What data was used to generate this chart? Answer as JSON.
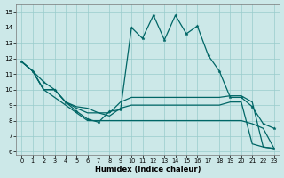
{
  "bg_color": "#cce8e8",
  "grid_color": "#99cccc",
  "line_color": "#006666",
  "xlabel": "Humidex (Indice chaleur)",
  "xlim": [
    -0.5,
    23.5
  ],
  "ylim": [
    5.8,
    15.5
  ],
  "yticks": [
    6,
    7,
    8,
    9,
    10,
    11,
    12,
    13,
    14,
    15
  ],
  "xticks": [
    0,
    1,
    2,
    3,
    4,
    5,
    6,
    7,
    8,
    9,
    10,
    11,
    12,
    13,
    14,
    15,
    16,
    17,
    18,
    19,
    20,
    21,
    22,
    23
  ],
  "line_peak": [
    11.8,
    11.2,
    10.5,
    10.0,
    9.2,
    8.6,
    8.1,
    7.9,
    8.6,
    8.7,
    14.0,
    13.3,
    14.8,
    13.2,
    14.8,
    13.6,
    14.1,
    12.2,
    11.2,
    9.5,
    9.5,
    8.9,
    7.8,
    7.5
  ],
  "line2": [
    11.8,
    11.2,
    10.0,
    10.0,
    9.2,
    8.9,
    8.8,
    8.5,
    8.5,
    9.2,
    9.5,
    9.5,
    9.5,
    9.5,
    9.5,
    9.5,
    9.5,
    9.5,
    9.5,
    9.6,
    9.6,
    9.2,
    6.3,
    6.2
  ],
  "line3": [
    11.8,
    11.2,
    10.0,
    10.0,
    9.2,
    8.8,
    8.5,
    8.5,
    8.3,
    8.8,
    9.0,
    9.0,
    9.0,
    9.0,
    9.0,
    9.0,
    9.0,
    9.0,
    9.0,
    9.2,
    9.2,
    6.5,
    6.3,
    6.2
  ],
  "line_bot": [
    11.8,
    11.2,
    10.0,
    9.5,
    9.0,
    8.5,
    8.0,
    8.0,
    8.0,
    8.0,
    8.0,
    8.0,
    8.0,
    8.0,
    8.0,
    8.0,
    8.0,
    8.0,
    8.0,
    8.0,
    8.0,
    7.8,
    7.5,
    6.2
  ]
}
